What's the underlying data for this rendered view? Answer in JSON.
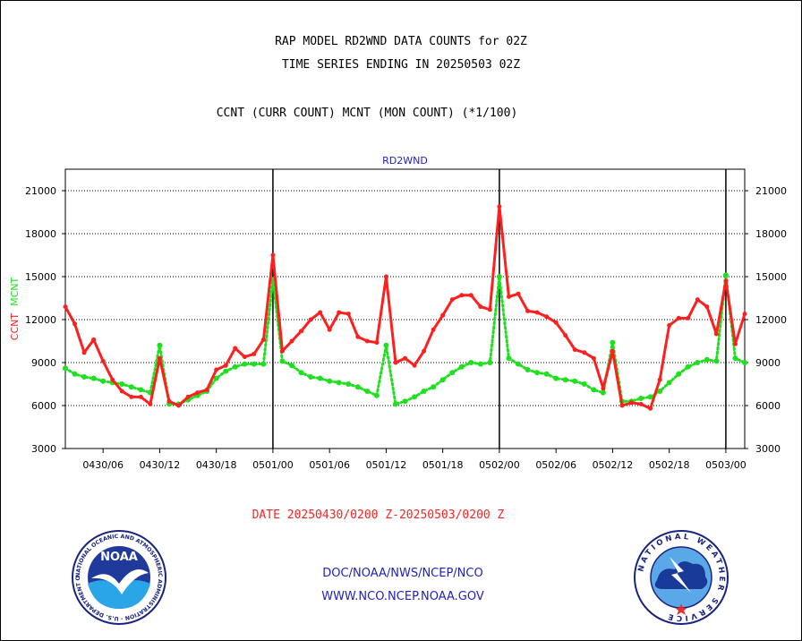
{
  "header": {
    "line1": "RAP MODEL RD2WND DATA COUNTS for 02Z",
    "line2": "TIME SERIES ENDING IN 20250503 02Z",
    "line3": "CCNT (CURR COUNT) MCNT (MON COUNT) (*1/100)"
  },
  "chart_data": {
    "type": "line",
    "title": "RD2WND",
    "ylabel_curr": "CCNT",
    "ylabel_mon": "MCNT",
    "xlabel": "DATE 20250430/0200 Z-20250503/0200 Z",
    "ylim": [
      3000,
      22500
    ],
    "yticks": [
      3000,
      6000,
      9000,
      12000,
      15000,
      18000,
      21000
    ],
    "grid": true,
    "x_range": [
      "2025-04-30T02:00Z",
      "2025-05-03T02:00Z"
    ],
    "x_tick_labels": [
      "0430/06",
      "0430/12",
      "0430/18",
      "0501/00",
      "0501/06",
      "0501/12",
      "0501/18",
      "0502/00",
      "0502/06",
      "0502/12",
      "0502/18",
      "0503/00"
    ],
    "x_tick_hours_from_start": [
      4,
      10,
      16,
      22,
      28,
      34,
      40,
      46,
      52,
      58,
      64,
      70
    ],
    "day_boundaries": [
      "0501/00",
      "0502/00",
      "0503/00"
    ],
    "x_hours": [
      0,
      1,
      2,
      3,
      4,
      5,
      6,
      7,
      8,
      9,
      10,
      11,
      12,
      13,
      14,
      15,
      16,
      17,
      18,
      19,
      20,
      21,
      22,
      23,
      24,
      25,
      26,
      27,
      28,
      29,
      30,
      31,
      32,
      33,
      34,
      35,
      36,
      37,
      38,
      39,
      40,
      41,
      42,
      43,
      44,
      45,
      46,
      47,
      48,
      49,
      50,
      51,
      52,
      53,
      54,
      55,
      56,
      57,
      58,
      59,
      60,
      61,
      62,
      63,
      64,
      65,
      66,
      67,
      68,
      69,
      70,
      71,
      72
    ],
    "series": [
      {
        "name": "CCNT",
        "color": "#ff1f1f",
        "values": [
          12900,
          11700,
          9700,
          10600,
          9100,
          7800,
          7000,
          6600,
          6600,
          6100,
          9300,
          6300,
          6000,
          6600,
          6900,
          7100,
          8500,
          8800,
          10000,
          9400,
          9600,
          10600,
          16500,
          9800,
          10500,
          11200,
          12000,
          12500,
          11300,
          12500,
          12400,
          10800,
          10500,
          10400,
          15000,
          9000,
          9300,
          8800,
          9800,
          11300,
          12300,
          13400,
          13700,
          13700,
          12900,
          12700,
          19900,
          13600,
          13800,
          12600,
          12500,
          12200,
          11800,
          10900,
          9900,
          9700,
          9300,
          7200,
          9800,
          6000,
          6200,
          6100,
          5800,
          7800,
          11600,
          12100,
          12100,
          13400,
          12900,
          11000,
          14700,
          10300,
          12400
        ]
      },
      {
        "name": "MCNT",
        "color": "#1fe01f",
        "values": [
          8600,
          8200,
          8000,
          7900,
          7700,
          7600,
          7500,
          7300,
          7100,
          6900,
          10200,
          6100,
          6100,
          6400,
          6700,
          7000,
          7900,
          8400,
          8700,
          8900,
          8900,
          8900,
          14800,
          9100,
          8800,
          8300,
          8000,
          7900,
          7700,
          7600,
          7500,
          7300,
          7000,
          6700,
          10200,
          6100,
          6300,
          6600,
          7000,
          7300,
          7800,
          8300,
          8700,
          9000,
          8900,
          9000,
          15000,
          9300,
          8900,
          8500,
          8300,
          8200,
          7900,
          7800,
          7700,
          7500,
          7100,
          6900,
          10400,
          6300,
          6300,
          6500,
          6600,
          7000,
          7600,
          8200,
          8700,
          9000,
          9200,
          9100,
          15100,
          9300,
          9000
        ]
      }
    ]
  },
  "footer": {
    "link1": "DOC/NOAA/NWS/NCEP/NCO",
    "link2": "WWW.NCO.NCEP.NOAA.GOV"
  },
  "logos": {
    "noaa_center": "NOAA",
    "noaa_ring": "NATIONAL OCEANIC AND ATMOSPHERIC ADMINISTRATION · U.S. DEPARTMENT OF COMMERCE ·",
    "nws_ring": "NATIONAL WEATHER SERVICE"
  },
  "colors": {
    "curr": "#ff1f1f",
    "mon": "#1fe01f",
    "title_blue": "#1f1fbf",
    "date_red": "#ff1f1f"
  }
}
